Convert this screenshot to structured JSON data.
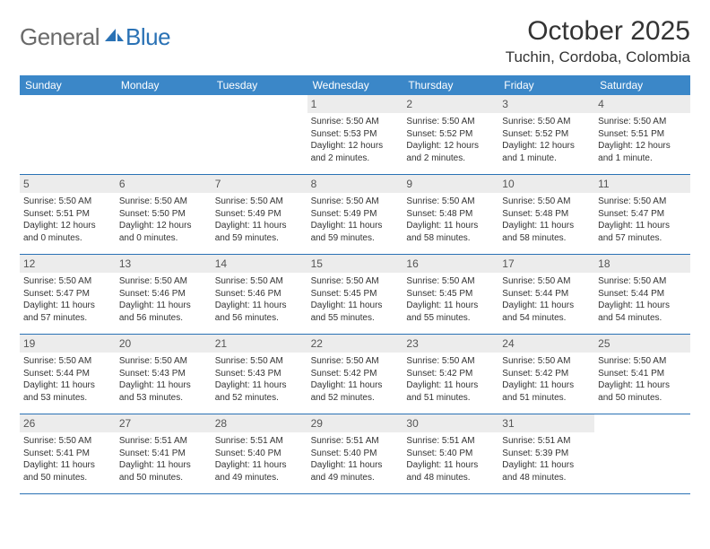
{
  "logo": {
    "general": "General",
    "blue": "Blue"
  },
  "title": "October 2025",
  "location": "Tuchin, Cordoba, Colombia",
  "colors": {
    "header_bg": "#3b87c8",
    "header_text": "#ffffff",
    "daynum_bg": "#ececec",
    "border": "#2a72b5",
    "logo_gray": "#6a6a6a",
    "logo_blue": "#2a72b5"
  },
  "daysOfWeek": [
    "Sunday",
    "Monday",
    "Tuesday",
    "Wednesday",
    "Thursday",
    "Friday",
    "Saturday"
  ],
  "weeks": [
    [
      {
        "n": "",
        "empty": true
      },
      {
        "n": "",
        "empty": true
      },
      {
        "n": "",
        "empty": true
      },
      {
        "n": "1",
        "sr": "5:50 AM",
        "ss": "5:53 PM",
        "dl": "12 hours and 2 minutes."
      },
      {
        "n": "2",
        "sr": "5:50 AM",
        "ss": "5:52 PM",
        "dl": "12 hours and 2 minutes."
      },
      {
        "n": "3",
        "sr": "5:50 AM",
        "ss": "5:52 PM",
        "dl": "12 hours and 1 minute."
      },
      {
        "n": "4",
        "sr": "5:50 AM",
        "ss": "5:51 PM",
        "dl": "12 hours and 1 minute."
      }
    ],
    [
      {
        "n": "5",
        "sr": "5:50 AM",
        "ss": "5:51 PM",
        "dl": "12 hours and 0 minutes."
      },
      {
        "n": "6",
        "sr": "5:50 AM",
        "ss": "5:50 PM",
        "dl": "12 hours and 0 minutes."
      },
      {
        "n": "7",
        "sr": "5:50 AM",
        "ss": "5:49 PM",
        "dl": "11 hours and 59 minutes."
      },
      {
        "n": "8",
        "sr": "5:50 AM",
        "ss": "5:49 PM",
        "dl": "11 hours and 59 minutes."
      },
      {
        "n": "9",
        "sr": "5:50 AM",
        "ss": "5:48 PM",
        "dl": "11 hours and 58 minutes."
      },
      {
        "n": "10",
        "sr": "5:50 AM",
        "ss": "5:48 PM",
        "dl": "11 hours and 58 minutes."
      },
      {
        "n": "11",
        "sr": "5:50 AM",
        "ss": "5:47 PM",
        "dl": "11 hours and 57 minutes."
      }
    ],
    [
      {
        "n": "12",
        "sr": "5:50 AM",
        "ss": "5:47 PM",
        "dl": "11 hours and 57 minutes."
      },
      {
        "n": "13",
        "sr": "5:50 AM",
        "ss": "5:46 PM",
        "dl": "11 hours and 56 minutes."
      },
      {
        "n": "14",
        "sr": "5:50 AM",
        "ss": "5:46 PM",
        "dl": "11 hours and 56 minutes."
      },
      {
        "n": "15",
        "sr": "5:50 AM",
        "ss": "5:45 PM",
        "dl": "11 hours and 55 minutes."
      },
      {
        "n": "16",
        "sr": "5:50 AM",
        "ss": "5:45 PM",
        "dl": "11 hours and 55 minutes."
      },
      {
        "n": "17",
        "sr": "5:50 AM",
        "ss": "5:44 PM",
        "dl": "11 hours and 54 minutes."
      },
      {
        "n": "18",
        "sr": "5:50 AM",
        "ss": "5:44 PM",
        "dl": "11 hours and 54 minutes."
      }
    ],
    [
      {
        "n": "19",
        "sr": "5:50 AM",
        "ss": "5:44 PM",
        "dl": "11 hours and 53 minutes."
      },
      {
        "n": "20",
        "sr": "5:50 AM",
        "ss": "5:43 PM",
        "dl": "11 hours and 53 minutes."
      },
      {
        "n": "21",
        "sr": "5:50 AM",
        "ss": "5:43 PM",
        "dl": "11 hours and 52 minutes."
      },
      {
        "n": "22",
        "sr": "5:50 AM",
        "ss": "5:42 PM",
        "dl": "11 hours and 52 minutes."
      },
      {
        "n": "23",
        "sr": "5:50 AM",
        "ss": "5:42 PM",
        "dl": "11 hours and 51 minutes."
      },
      {
        "n": "24",
        "sr": "5:50 AM",
        "ss": "5:42 PM",
        "dl": "11 hours and 51 minutes."
      },
      {
        "n": "25",
        "sr": "5:50 AM",
        "ss": "5:41 PM",
        "dl": "11 hours and 50 minutes."
      }
    ],
    [
      {
        "n": "26",
        "sr": "5:50 AM",
        "ss": "5:41 PM",
        "dl": "11 hours and 50 minutes."
      },
      {
        "n": "27",
        "sr": "5:51 AM",
        "ss": "5:41 PM",
        "dl": "11 hours and 50 minutes."
      },
      {
        "n": "28",
        "sr": "5:51 AM",
        "ss": "5:40 PM",
        "dl": "11 hours and 49 minutes."
      },
      {
        "n": "29",
        "sr": "5:51 AM",
        "ss": "5:40 PM",
        "dl": "11 hours and 49 minutes."
      },
      {
        "n": "30",
        "sr": "5:51 AM",
        "ss": "5:40 PM",
        "dl": "11 hours and 48 minutes."
      },
      {
        "n": "31",
        "sr": "5:51 AM",
        "ss": "5:39 PM",
        "dl": "11 hours and 48 minutes."
      },
      {
        "n": "",
        "empty": true
      }
    ]
  ],
  "labels": {
    "sunrise": "Sunrise:",
    "sunset": "Sunset:",
    "daylight": "Daylight:"
  }
}
